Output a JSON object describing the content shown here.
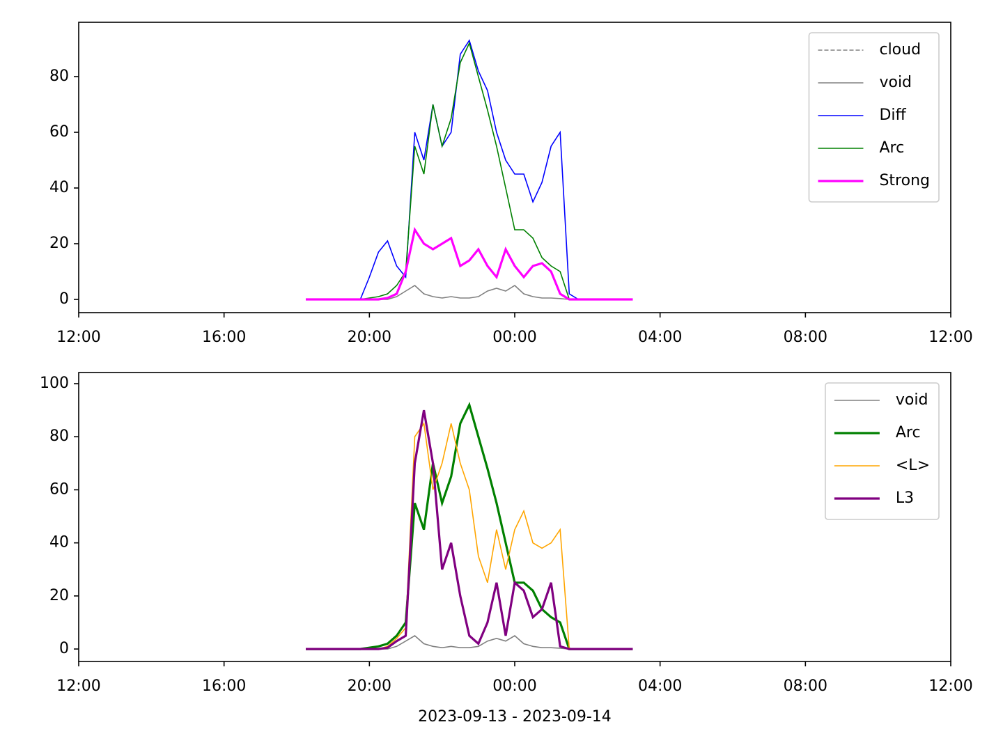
{
  "chart_data": [
    {
      "type": "line",
      "legend": "upper right",
      "x": [
        6.25,
        6.5,
        6.75,
        7,
        7.25,
        7.5,
        7.75,
        8,
        8.25,
        8.5,
        8.75,
        9,
        9.25,
        9.5,
        9.75,
        10,
        10.25,
        10.5,
        10.75,
        11,
        11.25,
        11.5,
        11.75,
        12,
        12.25,
        12.5,
        12.75,
        13,
        13.25,
        13.5,
        13.75,
        14,
        14.25,
        14.5,
        14.75,
        15,
        15.25
      ],
      "xlim": [
        0,
        24
      ],
      "xticks": [
        {
          "value": 0,
          "label": "12:00"
        },
        {
          "value": 4,
          "label": "16:00"
        },
        {
          "value": 8,
          "label": "20:00"
        },
        {
          "value": 12,
          "label": "00:00"
        },
        {
          "value": 16,
          "label": "04:00"
        },
        {
          "value": 20,
          "label": "08:00"
        },
        {
          "value": 24,
          "label": "12:00"
        }
      ],
      "ylim": [
        -4.75,
        99.5
      ],
      "yticks": [
        0,
        20,
        40,
        60,
        80
      ],
      "series": [
        {
          "name": "cloud",
          "color": "#808080",
          "linestyle": "dashed",
          "linewidth": 1,
          "values": [
            null,
            null,
            null,
            null,
            null,
            null,
            null,
            null,
            null,
            null,
            null,
            null,
            null,
            null,
            null,
            null,
            null,
            null,
            null,
            null,
            null,
            null,
            null,
            null,
            null,
            null,
            null,
            null,
            null,
            null,
            null,
            null,
            null,
            null,
            null,
            null,
            null
          ]
        },
        {
          "name": "void",
          "color": "#808080",
          "linestyle": "solid",
          "linewidth": 1,
          "values": [
            0,
            0,
            0,
            0,
            0,
            0,
            0,
            0,
            0,
            0,
            1,
            3,
            5,
            2,
            1,
            0.5,
            1,
            0.5,
            0.5,
            1,
            3,
            4,
            3,
            5,
            2,
            1,
            0.5,
            0.5,
            0.3,
            0,
            0,
            0,
            0,
            0,
            0,
            0,
            0
          ]
        },
        {
          "name": "Diff",
          "color": "#0000ff",
          "linestyle": "solid",
          "linewidth": 1,
          "values": [
            0,
            0,
            0,
            0,
            0,
            0,
            0,
            8,
            17,
            21,
            12,
            8,
            60,
            50,
            70,
            55,
            60,
            88,
            93,
            82,
            75,
            60,
            50,
            45,
            45,
            35,
            42,
            55,
            60,
            2,
            0,
            0,
            0,
            0,
            0,
            0,
            0
          ]
        },
        {
          "name": "Arc",
          "color": "#008000",
          "linestyle": "solid",
          "linewidth": 1,
          "values": [
            0,
            0,
            0,
            0,
            0,
            0,
            0,
            0.5,
            1,
            2,
            5,
            10,
            55,
            45,
            70,
            55,
            65,
            85,
            92,
            80,
            68,
            55,
            40,
            25,
            25,
            22,
            15,
            12,
            10,
            0,
            0,
            0,
            0,
            0,
            0,
            0,
            0
          ]
        },
        {
          "name": "Strong",
          "color": "#ff00ff",
          "linestyle": "solid",
          "linewidth": 2,
          "values": [
            0,
            0,
            0,
            0,
            0,
            0,
            0,
            0,
            0,
            0.5,
            2,
            10,
            25,
            20,
            18,
            20,
            22,
            12,
            14,
            18,
            12,
            8,
            18,
            12,
            8,
            12,
            13,
            10,
            2,
            0,
            0,
            0,
            0,
            0,
            0,
            0,
            0
          ]
        }
      ]
    },
    {
      "type": "line",
      "legend": "upper right",
      "xlabel": "2023-09-13 - 2023-09-14",
      "x": [
        6.25,
        6.5,
        6.75,
        7,
        7.25,
        7.5,
        7.75,
        8,
        8.25,
        8.5,
        8.75,
        9,
        9.25,
        9.5,
        9.75,
        10,
        10.25,
        10.5,
        10.75,
        11,
        11.25,
        11.5,
        11.75,
        12,
        12.25,
        12.5,
        12.75,
        13,
        13.25,
        13.5,
        13.75,
        14,
        14.25,
        14.5,
        14.75,
        15,
        15.25
      ],
      "xlim": [
        0,
        24
      ],
      "xticks": [
        {
          "value": 0,
          "label": "12:00"
        },
        {
          "value": 4,
          "label": "16:00"
        },
        {
          "value": 8,
          "label": "20:00"
        },
        {
          "value": 12,
          "label": "00:00"
        },
        {
          "value": 16,
          "label": "04:00"
        },
        {
          "value": 20,
          "label": "08:00"
        },
        {
          "value": 24,
          "label": "12:00"
        }
      ],
      "ylim": [
        -4.7,
        104.2
      ],
      "yticks": [
        0,
        20,
        40,
        60,
        80,
        100
      ],
      "series": [
        {
          "name": "void",
          "color": "#808080",
          "linestyle": "solid",
          "linewidth": 1,
          "values": [
            0,
            0,
            0,
            0,
            0,
            0,
            0,
            0,
            0,
            0,
            1,
            3,
            5,
            2,
            1,
            0.5,
            1,
            0.5,
            0.5,
            1,
            3,
            4,
            3,
            5,
            2,
            1,
            0.5,
            0.5,
            0.3,
            0,
            0,
            0,
            0,
            0,
            0,
            0,
            0
          ]
        },
        {
          "name": "Arc",
          "color": "#008000",
          "linestyle": "solid",
          "linewidth": 2,
          "values": [
            0,
            0,
            0,
            0,
            0,
            0,
            0,
            0.5,
            1,
            2,
            5,
            10,
            55,
            45,
            70,
            55,
            65,
            85,
            92,
            80,
            68,
            55,
            40,
            25,
            25,
            22,
            15,
            12,
            10,
            0,
            0,
            0,
            0,
            0,
            0,
            0,
            0
          ]
        },
        {
          "name": "<L>",
          "color": "#ffa500",
          "linestyle": "solid",
          "linewidth": 1,
          "values": [
            0,
            0,
            0,
            0,
            0,
            0,
            0,
            0,
            0,
            1,
            4,
            8,
            80,
            85,
            60,
            70,
            85,
            70,
            60,
            35,
            25,
            45,
            30,
            45,
            52,
            40,
            38,
            40,
            45,
            0,
            0,
            0,
            0,
            0,
            0,
            0,
            0
          ]
        },
        {
          "name": "L3",
          "color": "#800080",
          "linestyle": "solid",
          "linewidth": 2,
          "values": [
            0,
            0,
            0,
            0,
            0,
            0,
            0,
            0,
            0,
            0.5,
            3,
            5,
            70,
            90,
            70,
            30,
            40,
            20,
            5,
            2,
            10,
            25,
            5,
            25,
            22,
            12,
            15,
            25,
            1,
            0,
            0,
            0,
            0,
            0,
            0,
            0,
            0
          ]
        }
      ]
    }
  ]
}
